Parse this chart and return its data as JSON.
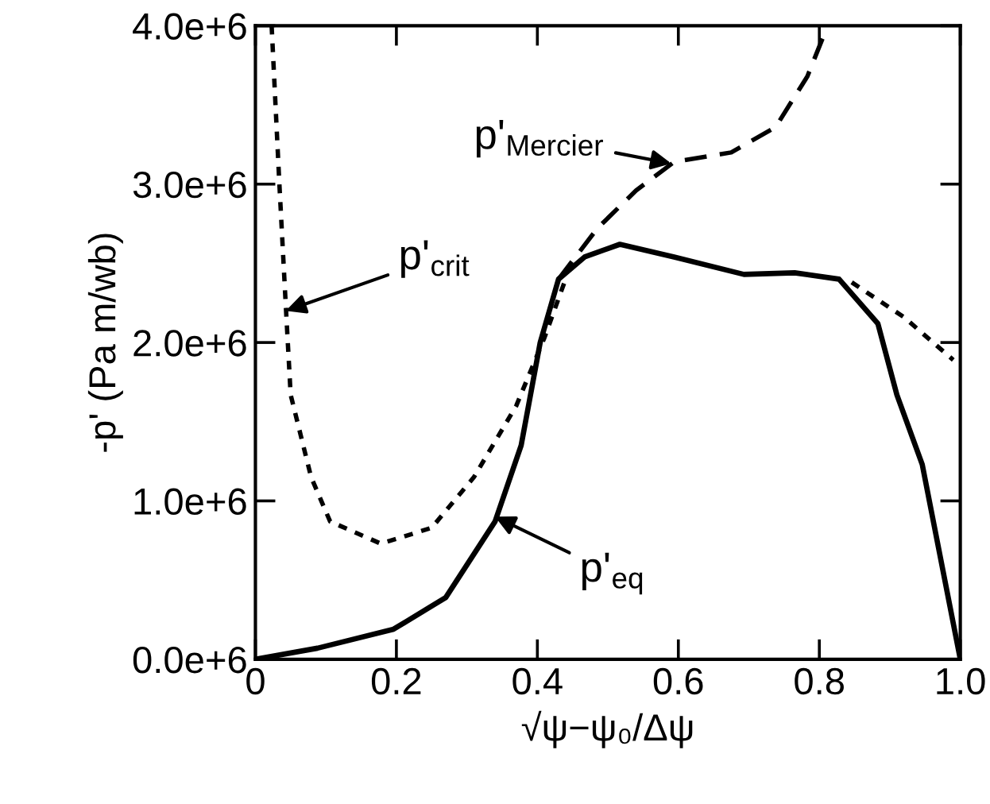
{
  "chart_data": {
    "type": "line",
    "xlabel": "√ψ−ψ₀/Δψ",
    "ylabel": "-p' (Pa m/wb)",
    "xlim": [
      0,
      1
    ],
    "ylim": [
      0,
      4000000
    ],
    "xticks": [
      0,
      0.2,
      0.4,
      0.6,
      0.8,
      {
        "value": 1,
        "label": "1.0"
      }
    ],
    "yticks": [
      {
        "value": 0,
        "label": "0.0e+6"
      },
      {
        "value": 1000000,
        "label": "1.0e+6"
      },
      {
        "value": 2000000,
        "label": "2.0e+6"
      },
      {
        "value": 3000000,
        "label": "3.0e+6"
      },
      {
        "value": 4000000,
        "label": "4.0e+6"
      }
    ],
    "grid": false,
    "legend": false,
    "marker": "none",
    "series": [
      {
        "color": "#000000",
        "line_style": "dotted",
        "x": [
          0.023,
          0.034,
          0.043,
          0.05,
          0.079,
          0.106,
          0.178,
          0.25,
          0.31,
          0.37,
          0.41,
          0.44,
          0.6,
          0.846,
          0.92,
          0.99
        ],
        "values": [
          4000000,
          3000000,
          2240000,
          1670000,
          1150000,
          870000,
          730000,
          830000,
          1150000,
          1600000,
          2030000,
          2400000,
          null,
          2380000,
          2160000,
          1890000
        ]
      },
      {
        "color": "#000000",
        "line_style": "dashed",
        "x": [
          0.43,
          0.485,
          0.54,
          0.594,
          0.675,
          0.738,
          0.783,
          0.81
        ],
        "values": [
          2400000,
          2720000,
          2960000,
          3140000,
          3200000,
          3360000,
          3680000,
          3980000
        ]
      },
      {
        "color": "#000000",
        "line_style": "solid",
        "x": [
          0,
          0.088,
          0.196,
          0.27,
          0.34,
          0.377,
          0.404,
          0.43,
          0.467,
          0.517,
          0.594,
          0.693,
          0.765,
          0.828,
          0.883,
          0.91,
          0.946,
          1.0
        ],
        "values": [
          0,
          70000,
          190000,
          390000,
          870000,
          1350000,
          2000000,
          2400000,
          2540000,
          2620000,
          2540000,
          2430000,
          2440000,
          2400000,
          2120000,
          1670000,
          1230000,
          0
        ]
      }
    ],
    "annotations": [
      {
        "text": "p'$_{crit}$",
        "x": 0.043,
        "y": 2200000
      },
      {
        "text": "p'$_{Mercier}$",
        "x": 0.59,
        "y": 3130000
      },
      {
        "text": "p'$_{eq}$",
        "x": 0.34,
        "y": 900000
      }
    ]
  }
}
